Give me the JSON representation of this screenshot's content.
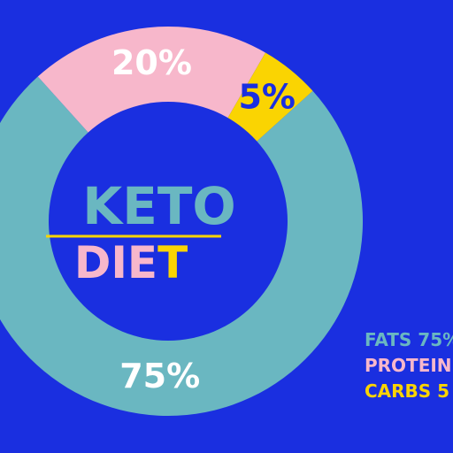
{
  "chart_data": {
    "type": "pie",
    "style": "donut",
    "title_line1": "KETO",
    "title_line2": "DIET",
    "categories": [
      "FATS",
      "PROTEIN",
      "CARBS"
    ],
    "values": [
      75,
      20,
      5
    ],
    "labels": [
      "75%",
      "20%",
      "5%"
    ],
    "legend": [
      "FATS 75%",
      "PROTEIN",
      "CARBS 5"
    ],
    "colors": {
      "fats": "#6ab7c1",
      "protein": "#f7b7cb",
      "carbs": "#fad402",
      "background": "#1a2fe0",
      "label_text": "#ffffff",
      "carbs_label_text": "#1a2fe0",
      "title_keto": "#6ab7c1",
      "title_die": "#f7b7cb",
      "title_t": "#fad402",
      "underline": "#fad402"
    }
  }
}
